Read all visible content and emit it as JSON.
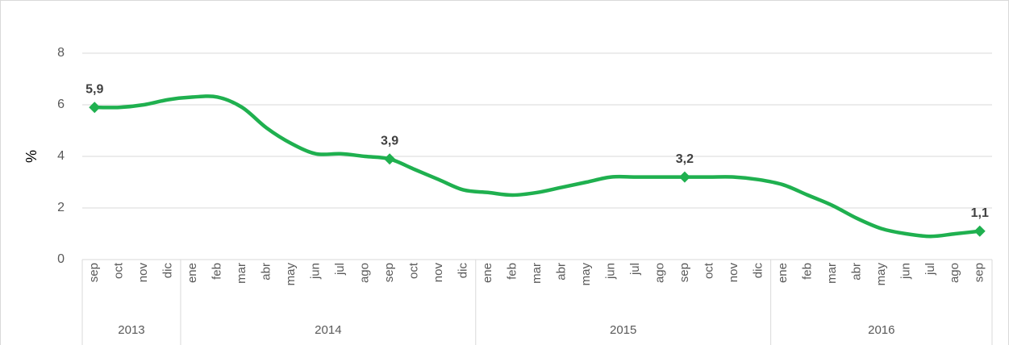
{
  "chart_data": {
    "type": "line",
    "y_label": "%",
    "categories": [
      "sep",
      "oct",
      "nov",
      "dic",
      "ene",
      "feb",
      "mar",
      "abr",
      "may",
      "jun",
      "jul",
      "ago",
      "sep",
      "oct",
      "nov",
      "dic",
      "ene",
      "feb",
      "mar",
      "abr",
      "may",
      "jun",
      "jul",
      "ago",
      "sep",
      "oct",
      "nov",
      "dic",
      "ene",
      "feb",
      "mar",
      "abr",
      "may",
      "jun",
      "jul",
      "ago",
      "sep"
    ],
    "x_groups": [
      {
        "label": "2013",
        "count": 4
      },
      {
        "label": "2014",
        "count": 12
      },
      {
        "label": "2015",
        "count": 12
      },
      {
        "label": "2016",
        "count": 9
      }
    ],
    "series": [
      {
        "name": "%",
        "color": "#1fb04f",
        "values": [
          5.9,
          5.9,
          6.0,
          6.2,
          6.3,
          6.3,
          5.9,
          5.1,
          4.5,
          4.1,
          4.1,
          4.0,
          3.9,
          3.5,
          3.1,
          2.7,
          2.6,
          2.5,
          2.6,
          2.8,
          3.0,
          3.2,
          3.2,
          3.2,
          3.2,
          3.2,
          3.2,
          3.1,
          2.9,
          2.5,
          2.1,
          1.6,
          1.2,
          1.0,
          0.9,
          1.0,
          1.1
        ],
        "value_labels": [
          "5,9",
          null,
          null,
          null,
          null,
          null,
          null,
          null,
          null,
          null,
          null,
          null,
          "3,9",
          null,
          null,
          null,
          null,
          null,
          null,
          null,
          null,
          null,
          null,
          null,
          "3,2",
          null,
          null,
          null,
          null,
          null,
          null,
          null,
          null,
          null,
          null,
          null,
          "1,1"
        ]
      }
    ],
    "ylim": [
      0,
      8
    ],
    "yticks": [
      0,
      2,
      4,
      6,
      8
    ],
    "grid": true
  }
}
